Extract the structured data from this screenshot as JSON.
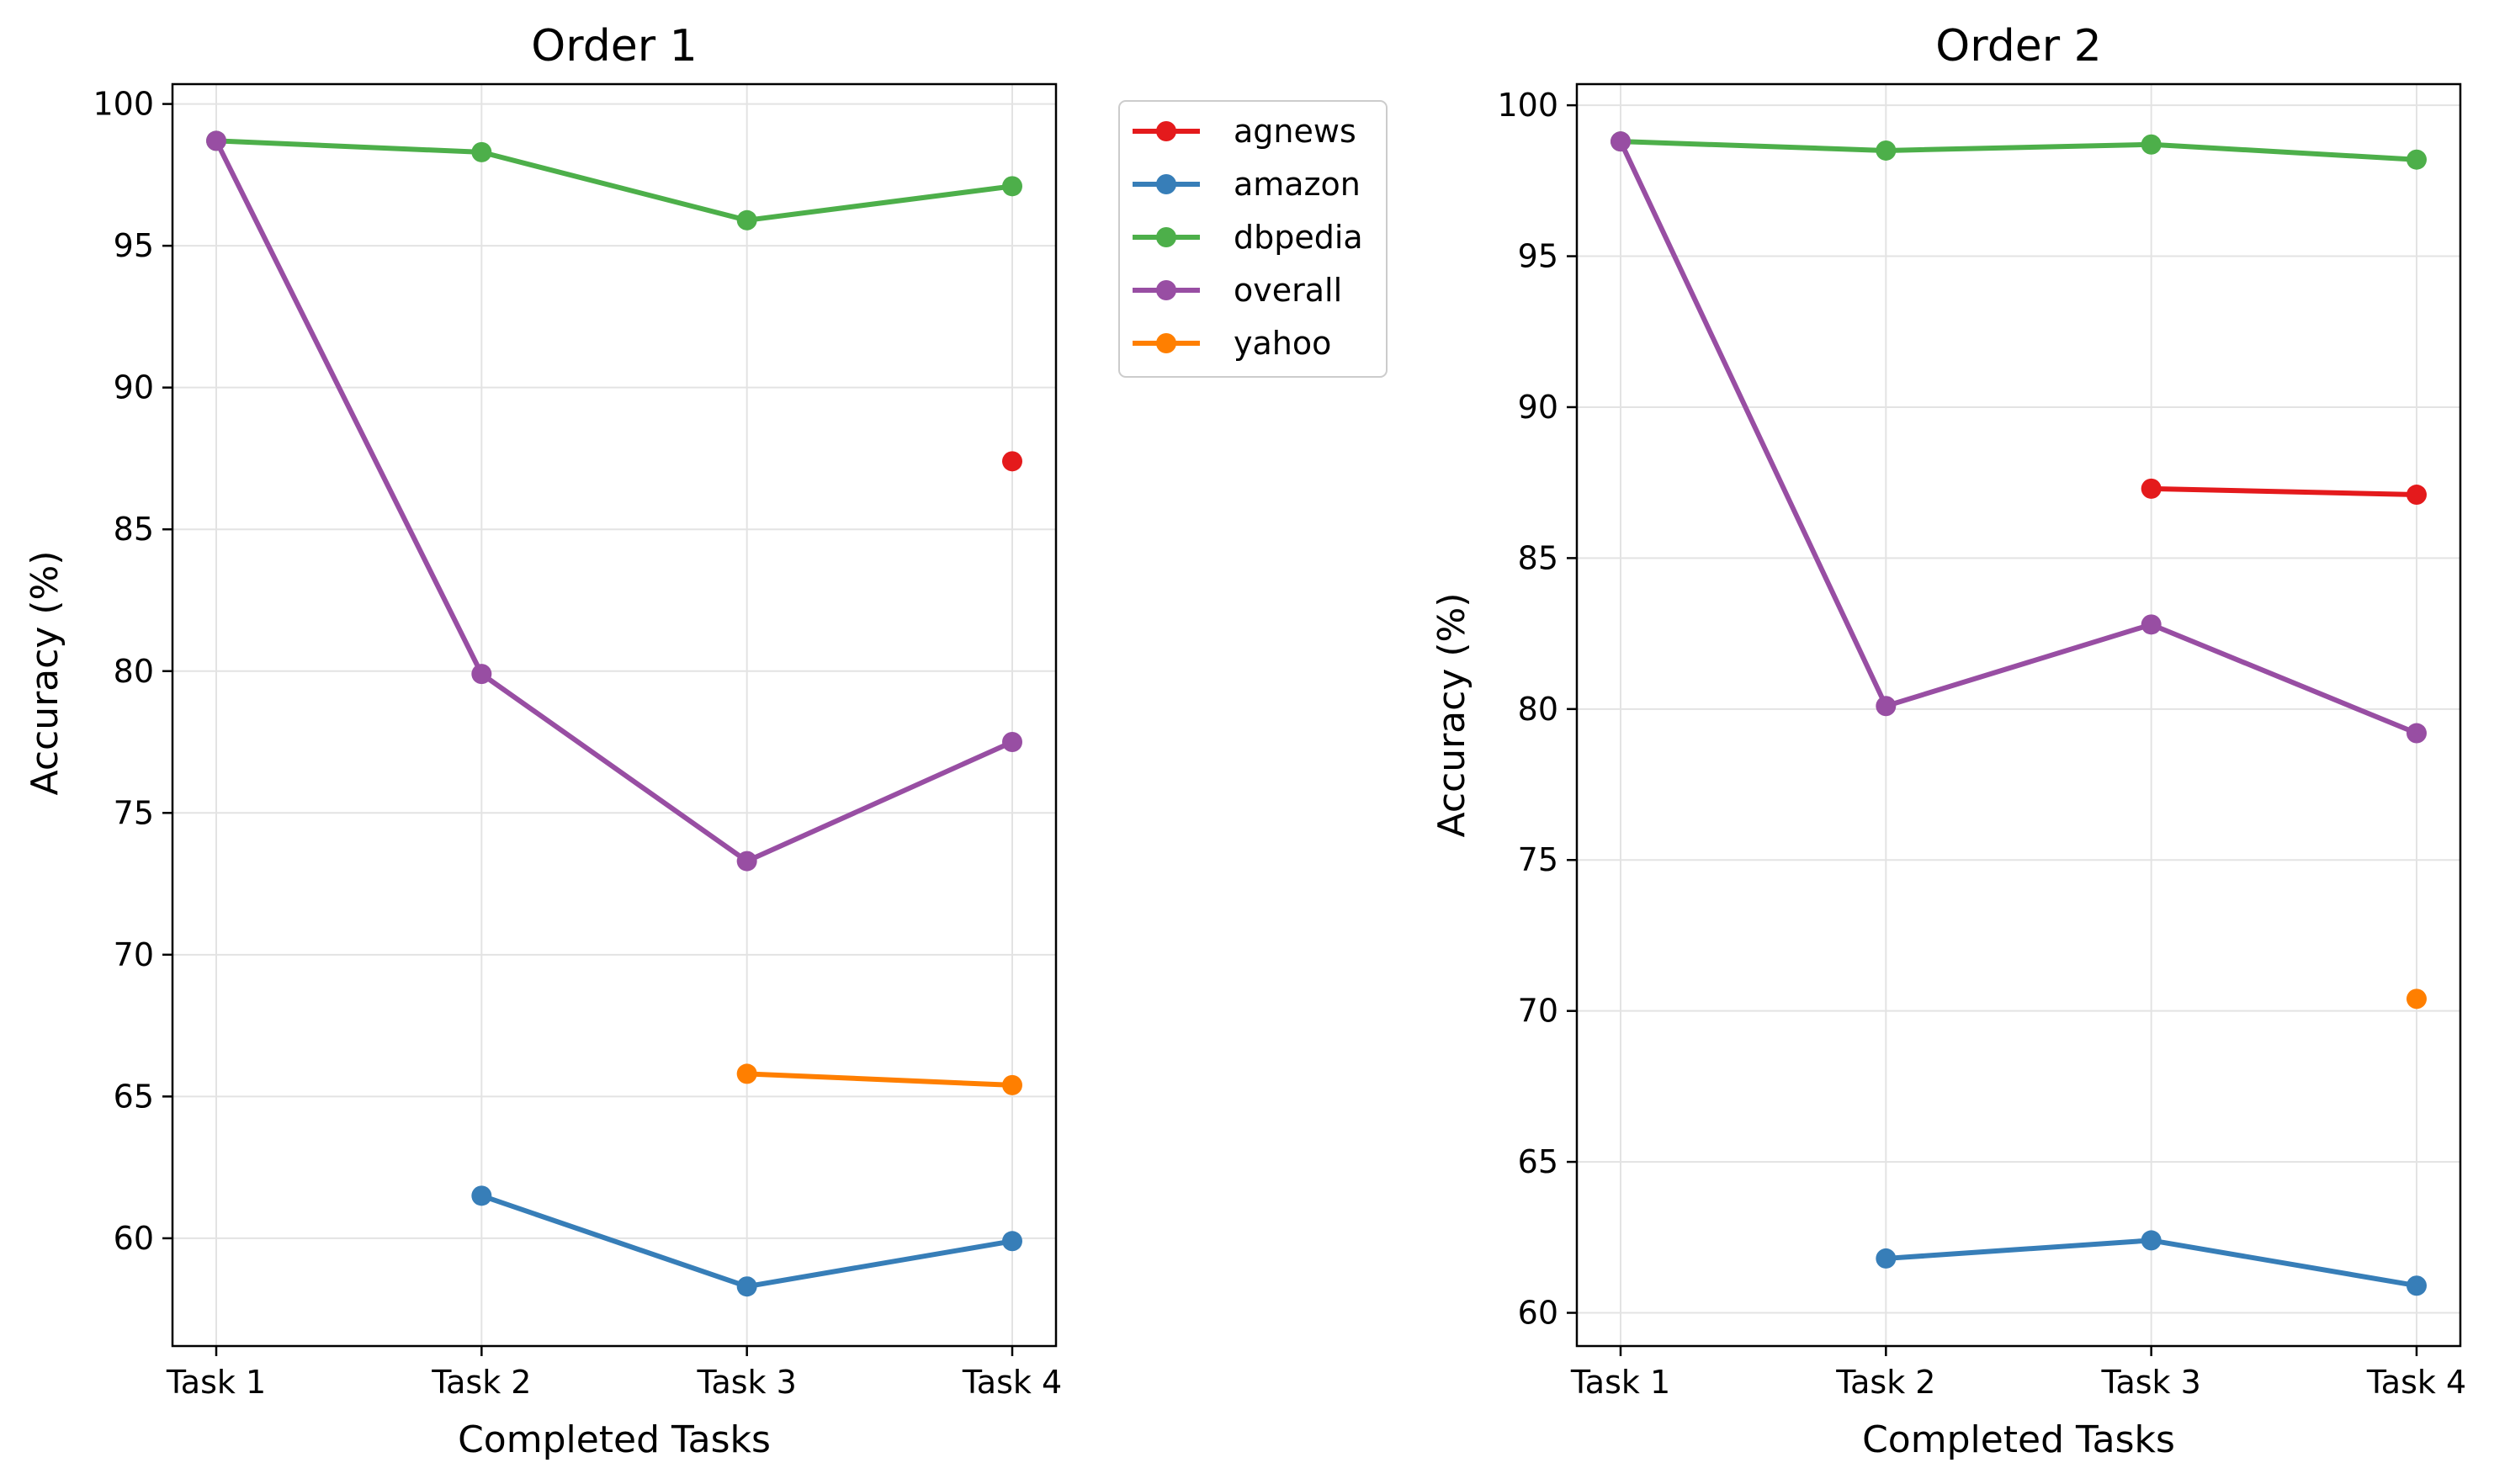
{
  "chart_data": [
    {
      "type": "line",
      "title": "Order 1",
      "xlabel": "Completed Tasks",
      "ylabel": "Accuracy (%)",
      "categories": [
        "Task 1",
        "Task 2",
        "Task 3",
        "Task 4"
      ],
      "ylim": [
        56.2,
        100.7
      ],
      "yticks": [
        60,
        65,
        70,
        75,
        80,
        85,
        90,
        95,
        100
      ],
      "grid": true,
      "legend": "outside-top-right",
      "series": [
        {
          "name": "agnews",
          "color": "#e41a1c",
          "values": [
            null,
            null,
            null,
            87.4
          ]
        },
        {
          "name": "amazon",
          "color": "#377eb8",
          "values": [
            null,
            61.5,
            58.3,
            59.9
          ]
        },
        {
          "name": "dbpedia",
          "color": "#4daf4a",
          "values": [
            98.7,
            98.3,
            95.9,
            97.1
          ]
        },
        {
          "name": "overall",
          "color": "#984ea3",
          "values": [
            98.7,
            79.9,
            73.3,
            77.5
          ]
        },
        {
          "name": "yahoo",
          "color": "#ff7f00",
          "values": [
            null,
            null,
            65.8,
            65.4
          ]
        }
      ]
    },
    {
      "type": "line",
      "title": "Order 2",
      "xlabel": "Completed Tasks",
      "ylabel": "Accuracy (%)",
      "categories": [
        "Task 1",
        "Task 2",
        "Task 3",
        "Task 4"
      ],
      "ylim": [
        58.9,
        100.7
      ],
      "yticks": [
        60,
        65,
        70,
        75,
        80,
        85,
        90,
        95,
        100
      ],
      "grid": true,
      "series": [
        {
          "name": "agnews",
          "color": "#e41a1c",
          "values": [
            null,
            null,
            87.3,
            87.1
          ]
        },
        {
          "name": "amazon",
          "color": "#377eb8",
          "values": [
            null,
            61.8,
            62.4,
            60.9
          ]
        },
        {
          "name": "dbpedia",
          "color": "#4daf4a",
          "values": [
            98.8,
            98.5,
            98.7,
            98.2
          ]
        },
        {
          "name": "overall",
          "color": "#984ea3",
          "values": [
            98.8,
            80.1,
            82.8,
            79.2
          ]
        },
        {
          "name": "yahoo",
          "color": "#ff7f00",
          "values": [
            null,
            null,
            null,
            70.4
          ]
        }
      ]
    }
  ]
}
